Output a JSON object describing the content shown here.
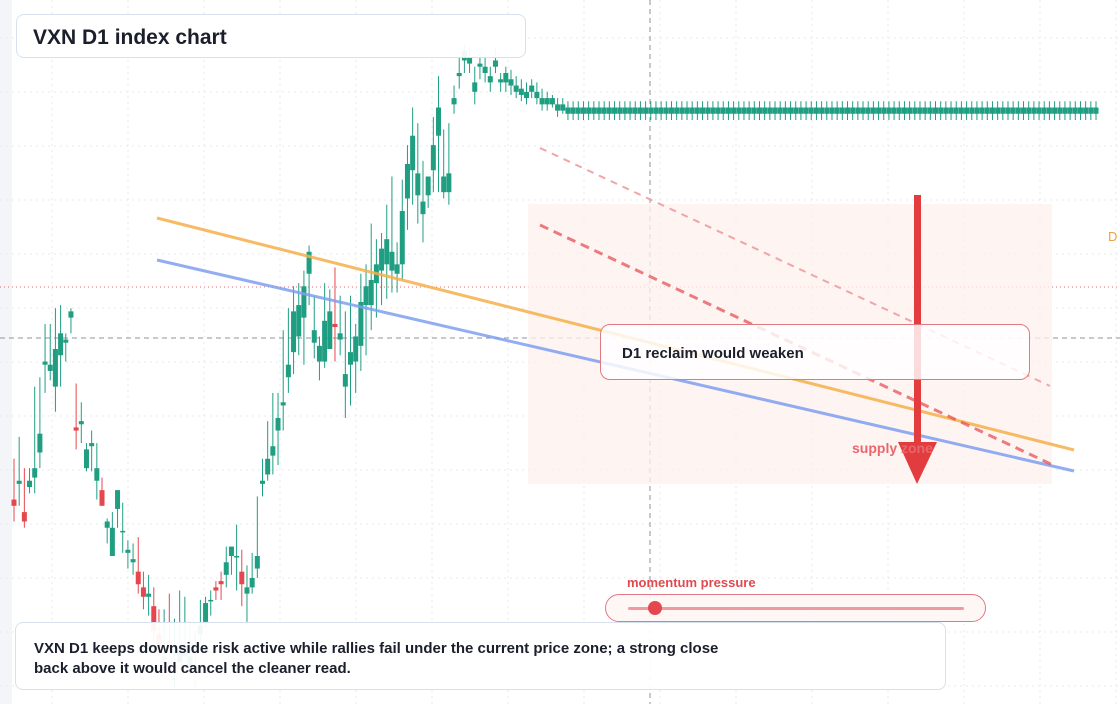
{
  "header": {
    "title": "VXN D1 index chart"
  },
  "thesis": {
    "text": "VXN D1 keeps downside risk active while rallies fail under the current price zone; a strong close back above it would cancel the cleaner read."
  },
  "callout": {
    "text": "D1 reclaim would weaken"
  },
  "zone": {
    "label": "supply zone"
  },
  "momentum": {
    "label": "momentum pressure",
    "level": 0.08
  },
  "edge_tag": {
    "text": "D"
  },
  "colors": {
    "up": "#1f9e82",
    "down": "#e5474e",
    "ma_fast": "#f5b04a",
    "ma_slow": "#7f9ff0",
    "resistance": "#e5474e",
    "bg": "#ffffff"
  },
  "chart_data": {
    "type": "candlestick",
    "title": "VXN D1 index chart",
    "timeframe": "D1",
    "grid": true,
    "ylim": [
      0,
      100
    ],
    "candles": [
      [
        42,
        55,
        40,
        35
      ],
      [
        47,
        62,
        48,
        40
      ],
      [
        38,
        52,
        35,
        33
      ],
      [
        46,
        52,
        48,
        44
      ],
      [
        49,
        78,
        52,
        44
      ],
      [
        57,
        81,
        63,
        52
      ],
      [
        85,
        98,
        86,
        76
      ],
      [
        83,
        98,
        85,
        80
      ],
      [
        78,
        103,
        90,
        70
      ],
      [
        88,
        104,
        95,
        78
      ],
      [
        92,
        95,
        93,
        86
      ],
      [
        100,
        103,
        102,
        95
      ],
      [
        65,
        79,
        64,
        58
      ],
      [
        66,
        73,
        67,
        60
      ],
      [
        52,
        60,
        58,
        51
      ],
      [
        59,
        64,
        60,
        51
      ],
      [
        48,
        60,
        52,
        42
      ],
      [
        45,
        49,
        40,
        40
      ],
      [
        33,
        36,
        35,
        28
      ],
      [
        24,
        38,
        33,
        24
      ],
      [
        39,
        45,
        45,
        33
      ],
      [
        32,
        41,
        32,
        25
      ],
      [
        25,
        29,
        26,
        20
      ],
      [
        22,
        28,
        23,
        18
      ],
      [
        19,
        30,
        15,
        12
      ],
      [
        14,
        19,
        11,
        7
      ],
      [
        11,
        18,
        12,
        5
      ],
      [
        8,
        14,
        0,
        -4
      ],
      [
        -1,
        7,
        -5,
        -8
      ],
      [
        -9,
        7,
        -8,
        -12
      ],
      [
        -3,
        12,
        -5,
        -8
      ],
      [
        -15,
        4,
        -15,
        -18
      ],
      [
        -10,
        13,
        -6,
        -8
      ],
      [
        -8,
        11,
        -5,
        -8
      ],
      [
        -11,
        3,
        -8,
        -14
      ],
      [
        -12,
        0,
        -11,
        -18
      ],
      [
        -1,
        10,
        2,
        -4
      ],
      [
        3,
        11,
        9,
        1
      ],
      [
        10,
        13,
        10,
        5
      ],
      [
        14,
        16,
        13,
        10
      ],
      [
        16,
        19,
        15,
        10
      ],
      [
        18,
        27,
        22,
        14
      ],
      [
        24,
        27,
        27,
        18
      ],
      [
        24,
        34,
        24,
        13
      ],
      [
        19,
        26,
        15,
        8
      ],
      [
        12,
        21,
        14,
        3
      ],
      [
        14,
        25,
        17,
        12
      ],
      [
        20,
        43,
        24,
        17
      ],
      [
        47,
        55,
        48,
        43
      ],
      [
        50,
        67,
        55,
        48
      ],
      [
        56,
        76,
        59,
        50
      ],
      [
        64,
        76,
        68,
        53
      ],
      [
        72,
        96,
        73,
        64
      ],
      [
        81,
        103,
        85,
        76
      ],
      [
        89,
        110,
        102,
        82
      ],
      [
        94,
        111,
        104,
        88
      ],
      [
        100,
        115,
        110,
        85
      ],
      [
        114,
        123,
        121,
        104
      ],
      [
        92,
        107,
        96,
        87
      ],
      [
        86,
        94,
        91,
        80
      ],
      [
        86,
        111,
        99,
        84
      ],
      [
        90,
        109,
        102,
        91
      ],
      [
        98,
        116,
        97,
        86
      ],
      [
        93,
        107,
        95,
        88
      ],
      [
        78,
        102,
        82,
        68
      ],
      [
        85,
        107,
        89,
        72
      ],
      [
        86,
        98,
        94,
        76
      ],
      [
        91,
        114,
        105,
        83
      ],
      [
        104,
        117,
        110,
        88
      ],
      [
        104,
        130,
        112,
        96
      ],
      [
        111,
        125,
        117,
        100
      ],
      [
        115,
        127,
        122,
        104
      ],
      [
        117,
        136,
        125,
        106
      ],
      [
        115,
        145,
        121,
        108
      ],
      [
        114,
        124,
        117,
        108
      ],
      [
        117,
        144,
        134,
        112
      ],
      [
        138,
        155,
        149,
        128
      ],
      [
        147,
        167,
        158,
        136
      ],
      [
        139,
        162,
        146,
        130
      ],
      [
        133,
        150,
        137,
        124
      ],
      [
        139,
        145,
        145,
        135
      ],
      [
        147,
        164,
        155,
        140
      ],
      [
        158,
        177,
        167,
        140
      ],
      [
        140,
        160,
        145,
        138
      ],
      [
        140,
        162,
        146,
        136
      ],
      [
        168,
        174,
        170,
        165
      ],
      [
        177,
        183,
        178,
        173
      ],
      [
        182,
        187,
        185,
        178
      ],
      [
        181,
        186,
        183,
        178
      ],
      [
        172,
        180,
        175,
        168
      ],
      [
        180,
        185,
        181,
        176
      ],
      [
        178,
        183,
        180,
        175
      ],
      [
        175,
        180,
        177,
        172
      ],
      [
        180,
        186,
        182,
        178
      ],
      [
        175,
        178,
        176,
        172
      ],
      [
        175,
        180,
        178,
        172
      ],
      [
        174,
        179,
        176,
        171
      ],
      [
        172,
        177,
        174,
        170
      ],
      [
        171,
        176,
        173,
        169
      ],
      [
        170,
        175,
        172,
        168
      ],
      [
        172,
        176,
        174,
        170
      ],
      [
        170,
        175,
        172,
        168
      ],
      [
        168,
        173,
        170,
        166
      ],
      [
        168,
        172,
        170,
        166
      ],
      [
        168,
        171,
        170,
        167
      ],
      [
        166,
        170,
        168,
        164
      ],
      [
        166,
        170,
        168,
        165
      ],
      [
        165,
        169,
        167,
        163
      ],
      [
        165,
        169,
        167,
        163
      ],
      [
        165,
        169,
        167,
        163
      ],
      [
        165,
        169,
        167,
        163
      ],
      [
        165,
        169,
        167,
        163
      ],
      [
        165,
        169,
        167,
        163
      ],
      [
        165,
        169,
        167,
        163
      ],
      [
        165,
        169,
        167,
        163
      ],
      [
        165,
        169,
        167,
        163
      ],
      [
        165,
        169,
        167,
        163
      ],
      [
        165,
        169,
        167,
        163
      ],
      [
        165,
        169,
        167,
        163
      ],
      [
        165,
        169,
        167,
        163
      ],
      [
        165,
        169,
        167,
        163
      ],
      [
        165,
        169,
        167,
        163
      ],
      [
        165,
        169,
        167,
        163
      ],
      [
        165,
        169,
        167,
        163
      ],
      [
        165,
        169,
        167,
        163
      ],
      [
        165,
        169,
        167,
        163
      ],
      [
        165,
        169,
        167,
        163
      ],
      [
        165,
        169,
        167,
        163
      ],
      [
        165,
        169,
        167,
        163
      ],
      [
        165,
        169,
        167,
        163
      ],
      [
        165,
        169,
        167,
        163
      ],
      [
        165,
        169,
        167,
        163
      ],
      [
        165,
        169,
        167,
        163
      ],
      [
        165,
        169,
        167,
        163
      ],
      [
        165,
        169,
        167,
        163
      ],
      [
        165,
        169,
        167,
        163
      ],
      [
        165,
        169,
        167,
        163
      ],
      [
        165,
        169,
        167,
        163
      ],
      [
        165,
        169,
        167,
        163
      ],
      [
        165,
        169,
        167,
        163
      ],
      [
        165,
        169,
        167,
        163
      ],
      [
        165,
        169,
        167,
        163
      ],
      [
        165,
        169,
        167,
        163
      ],
      [
        165,
        169,
        167,
        163
      ],
      [
        165,
        169,
        167,
        163
      ],
      [
        165,
        169,
        167,
        163
      ],
      [
        165,
        169,
        167,
        163
      ],
      [
        165,
        169,
        167,
        163
      ],
      [
        165,
        169,
        167,
        163
      ],
      [
        165,
        169,
        167,
        163
      ],
      [
        165,
        169,
        167,
        163
      ],
      [
        165,
        169,
        167,
        163
      ],
      [
        165,
        169,
        167,
        163
      ],
      [
        165,
        169,
        167,
        163
      ],
      [
        165,
        169,
        167,
        163
      ],
      [
        165,
        169,
        167,
        163
      ],
      [
        165,
        169,
        167,
        163
      ],
      [
        165,
        169,
        167,
        163
      ],
      [
        165,
        169,
        167,
        163
      ],
      [
        165,
        169,
        167,
        163
      ],
      [
        165,
        169,
        167,
        163
      ],
      [
        165,
        169,
        167,
        163
      ],
      [
        165,
        169,
        167,
        163
      ],
      [
        165,
        169,
        167,
        163
      ],
      [
        165,
        169,
        167,
        163
      ],
      [
        165,
        169,
        167,
        163
      ],
      [
        165,
        169,
        167,
        163
      ],
      [
        165,
        169,
        167,
        163
      ],
      [
        165,
        169,
        167,
        163
      ],
      [
        165,
        169,
        167,
        163
      ],
      [
        165,
        169,
        167,
        163
      ],
      [
        165,
        169,
        167,
        163
      ],
      [
        165,
        169,
        167,
        163
      ],
      [
        165,
        169,
        167,
        163
      ],
      [
        165,
        169,
        167,
        163
      ],
      [
        165,
        169,
        167,
        163
      ],
      [
        165,
        169,
        167,
        163
      ],
      [
        165,
        169,
        167,
        163
      ],
      [
        165,
        169,
        167,
        163
      ],
      [
        165,
        169,
        167,
        163
      ],
      [
        165,
        169,
        167,
        163
      ],
      [
        165,
        169,
        167,
        163
      ],
      [
        165,
        169,
        167,
        163
      ],
      [
        165,
        169,
        167,
        163
      ],
      [
        165,
        169,
        167,
        163
      ],
      [
        165,
        169,
        167,
        163
      ],
      [
        165,
        169,
        167,
        163
      ],
      [
        165,
        169,
        167,
        163
      ],
      [
        165,
        169,
        167,
        163
      ],
      [
        165,
        169,
        167,
        163
      ],
      [
        165,
        169,
        167,
        163
      ],
      [
        165,
        169,
        167,
        163
      ],
      [
        165,
        169,
        167,
        163
      ],
      [
        165,
        169,
        167,
        163
      ],
      [
        165,
        169,
        167,
        163
      ],
      [
        165,
        169,
        167,
        163
      ],
      [
        165,
        169,
        167,
        163
      ],
      [
        165,
        169,
        167,
        163
      ],
      [
        165,
        169,
        167,
        163
      ],
      [
        165,
        169,
        167,
        163
      ],
      [
        165,
        169,
        167,
        163
      ],
      [
        165,
        169,
        167,
        163
      ],
      [
        165,
        169,
        167,
        163
      ],
      [
        165,
        169,
        167,
        163
      ],
      [
        165,
        169,
        167,
        163
      ],
      [
        165,
        169,
        167,
        163
      ],
      [
        165,
        169,
        167,
        163
      ],
      [
        165,
        169,
        167,
        163
      ],
      [
        165,
        169,
        167,
        163
      ],
      [
        165,
        169,
        167,
        163
      ]
    ],
    "overlays": [
      {
        "kind": "moving-average",
        "role": "fast",
        "from": [
          0.14,
          0.31
        ],
        "to": [
          0.96,
          0.64
        ]
      },
      {
        "kind": "moving-average",
        "role": "slow",
        "from": [
          0.14,
          0.37
        ],
        "to": [
          0.96,
          0.67
        ]
      }
    ]
  }
}
